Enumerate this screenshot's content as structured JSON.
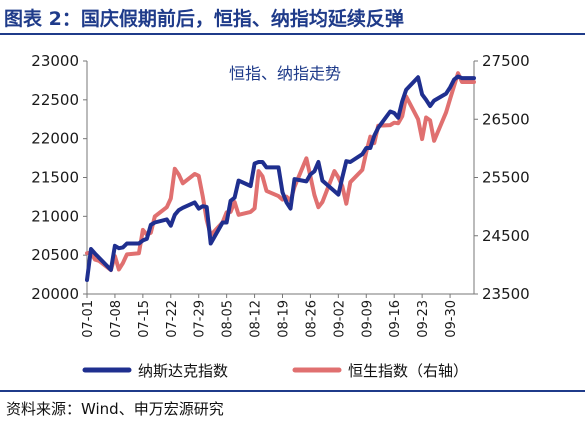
{
  "header": {
    "title": "图表 2：国庆假期前后，恒指、纳指均延续反弹"
  },
  "footer": {
    "source": "资料来源：Wind、申万宏源研究"
  },
  "chart_data": {
    "type": "line",
    "title": "恒指、纳指走势",
    "x": [
      "07-01",
      "07-02",
      "07-03",
      "07-04",
      "07-05",
      "07-06",
      "07-07",
      "07-08",
      "07-09",
      "07-10",
      "07-11",
      "07-12",
      "07-13",
      "07-14",
      "07-15",
      "07-16",
      "07-17",
      "07-18",
      "07-19",
      "07-20",
      "07-21",
      "07-22",
      "07-23",
      "07-24",
      "07-25",
      "07-26",
      "07-27",
      "07-28",
      "07-29",
      "07-30",
      "07-31",
      "08-01",
      "08-02",
      "08-03",
      "08-04",
      "08-05",
      "08-06",
      "08-07",
      "08-08",
      "08-09",
      "08-10",
      "08-11",
      "08-12",
      "08-13",
      "08-14",
      "08-15",
      "08-16",
      "08-17",
      "08-18",
      "08-19",
      "08-20",
      "08-21",
      "08-22",
      "08-23",
      "08-24",
      "08-25",
      "08-26",
      "08-27",
      "08-28",
      "08-29",
      "08-30",
      "08-31",
      "09-01",
      "09-02",
      "09-03",
      "09-04",
      "09-05",
      "09-06",
      "09-07",
      "09-08",
      "09-09",
      "09-10",
      "09-11",
      "09-12",
      "09-13",
      "09-14",
      "09-15",
      "09-16",
      "09-17",
      "09-18",
      "09-19",
      "09-20",
      "09-21",
      "09-22",
      "09-23",
      "09-24",
      "09-25",
      "09-26",
      "09-27",
      "09-28",
      "09-29",
      "09-30",
      "10-01",
      "10-02",
      "10-03",
      "10-04",
      "10-05",
      "10-06"
    ],
    "x_ticks": [
      "07-01",
      "07-08",
      "07-15",
      "07-22",
      "07-29",
      "08-05",
      "08-12",
      "08-19",
      "08-26",
      "09-02",
      "09-09",
      "09-16",
      "09-23",
      "09-30"
    ],
    "ylim": [
      20000,
      23000
    ],
    "y_ticks": [
      20000,
      20500,
      21000,
      21500,
      22000,
      22500,
      23000
    ],
    "y2lim": [
      23500,
      27500
    ],
    "y2_ticks": [
      23500,
      24500,
      25500,
      26500,
      27500
    ],
    "legend_position": "bottom",
    "grid": false,
    "series": [
      {
        "name": "纳斯达克指数",
        "axis": "left",
        "color": "#1f2f8f",
        "points": [
          [
            "07-01",
            20180
          ],
          [
            "07-02",
            20580
          ],
          [
            "07-03",
            20520
          ],
          [
            "07-07",
            20310
          ],
          [
            "07-08",
            20620
          ],
          [
            "07-09",
            20590
          ],
          [
            "07-10",
            20600
          ],
          [
            "07-11",
            20650
          ],
          [
            "07-14",
            20650
          ],
          [
            "07-15",
            20690
          ],
          [
            "07-16",
            20710
          ],
          [
            "07-17",
            20890
          ],
          [
            "07-18",
            20920
          ],
          [
            "07-21",
            20960
          ],
          [
            "07-22",
            20880
          ],
          [
            "07-23",
            21020
          ],
          [
            "07-24",
            21080
          ],
          [
            "07-25",
            21110
          ],
          [
            "07-28",
            21180
          ],
          [
            "07-29",
            21100
          ],
          [
            "07-30",
            21130
          ],
          [
            "07-31",
            21120
          ],
          [
            "08-01",
            20650
          ],
          [
            "08-04",
            20920
          ],
          [
            "08-05",
            20920
          ],
          [
            "08-06",
            21200
          ],
          [
            "08-07",
            21240
          ],
          [
            "08-08",
            21460
          ],
          [
            "08-11",
            21390
          ],
          [
            "08-12",
            21680
          ],
          [
            "08-13",
            21700
          ],
          [
            "08-14",
            21700
          ],
          [
            "08-15",
            21630
          ],
          [
            "08-18",
            21630
          ],
          [
            "08-19",
            21310
          ],
          [
            "08-20",
            21180
          ],
          [
            "08-21",
            21100
          ],
          [
            "08-22",
            21480
          ],
          [
            "08-25",
            21450
          ],
          [
            "08-26",
            21540
          ],
          [
            "08-27",
            21580
          ],
          [
            "08-28",
            21700
          ],
          [
            "08-29",
            21460
          ],
          [
            "09-02",
            21280
          ],
          [
            "09-03",
            21500
          ],
          [
            "09-04",
            21710
          ],
          [
            "09-05",
            21700
          ],
          [
            "09-08",
            21800
          ],
          [
            "09-09",
            21880
          ],
          [
            "09-10",
            21880
          ],
          [
            "09-11",
            22040
          ],
          [
            "09-12",
            22140
          ],
          [
            "09-15",
            22350
          ],
          [
            "09-16",
            22330
          ],
          [
            "09-17",
            22270
          ],
          [
            "09-18",
            22480
          ],
          [
            "09-19",
            22630
          ],
          [
            "09-22",
            22790
          ],
          [
            "09-23",
            22570
          ],
          [
            "09-24",
            22500
          ],
          [
            "09-25",
            22420
          ],
          [
            "09-26",
            22490
          ],
          [
            "09-29",
            22580
          ],
          [
            "09-30",
            22660
          ],
          [
            "10-01",
            22760
          ],
          [
            "10-02",
            22800
          ],
          [
            "10-03",
            22780
          ],
          [
            "10-06",
            22780
          ]
        ]
      },
      {
        "name": "恒生指数（右轴）",
        "axis": "right",
        "color": "#e07070",
        "points": [
          [
            "07-01",
            24200
          ],
          [
            "07-02",
            24210
          ],
          [
            "07-03",
            24090
          ],
          [
            "07-04",
            24070
          ],
          [
            "07-07",
            23910
          ],
          [
            "07-08",
            24150
          ],
          [
            "07-09",
            23920
          ],
          [
            "07-10",
            24030
          ],
          [
            "07-11",
            24180
          ],
          [
            "07-14",
            24200
          ],
          [
            "07-15",
            24600
          ],
          [
            "07-16",
            24520
          ],
          [
            "07-17",
            24550
          ],
          [
            "07-18",
            24830
          ],
          [
            "07-21",
            24990
          ],
          [
            "07-22",
            25140
          ],
          [
            "07-23",
            25650
          ],
          [
            "07-24",
            25550
          ],
          [
            "07-25",
            25400
          ],
          [
            "07-28",
            25560
          ],
          [
            "07-29",
            25530
          ],
          [
            "07-30",
            25180
          ],
          [
            "07-31",
            24770
          ],
          [
            "08-01",
            24510
          ],
          [
            "08-04",
            24730
          ],
          [
            "08-05",
            24900
          ],
          [
            "08-06",
            24910
          ],
          [
            "08-07",
            25080
          ],
          [
            "08-08",
            24860
          ],
          [
            "08-11",
            24910
          ],
          [
            "08-12",
            24970
          ],
          [
            "08-13",
            25610
          ],
          [
            "08-14",
            25520
          ],
          [
            "08-15",
            25270
          ],
          [
            "08-18",
            25180
          ],
          [
            "08-19",
            25120
          ],
          [
            "08-20",
            25170
          ],
          [
            "08-21",
            25100
          ],
          [
            "08-22",
            25340
          ],
          [
            "08-25",
            25830
          ],
          [
            "08-26",
            25520
          ],
          [
            "08-27",
            25200
          ],
          [
            "08-28",
            24990
          ],
          [
            "08-29",
            25080
          ],
          [
            "09-01",
            25610
          ],
          [
            "09-02",
            25500
          ],
          [
            "09-03",
            25350
          ],
          [
            "09-04",
            25050
          ],
          [
            "09-05",
            25420
          ],
          [
            "09-08",
            25630
          ],
          [
            "09-09",
            25940
          ],
          [
            "09-10",
            26200
          ],
          [
            "09-11",
            26090
          ],
          [
            "09-12",
            26390
          ],
          [
            "09-15",
            26400
          ],
          [
            "09-16",
            26440
          ],
          [
            "09-17",
            26430
          ],
          [
            "09-18",
            26550
          ],
          [
            "09-19",
            26890
          ],
          [
            "09-22",
            26500
          ],
          [
            "09-23",
            26160
          ],
          [
            "09-24",
            26530
          ],
          [
            "09-25",
            26480
          ],
          [
            "09-26",
            26130
          ],
          [
            "09-29",
            26620
          ],
          [
            "09-30",
            26850
          ],
          [
            "10-02",
            27290
          ],
          [
            "10-03",
            27140
          ],
          [
            "10-06",
            27140
          ]
        ]
      }
    ]
  }
}
